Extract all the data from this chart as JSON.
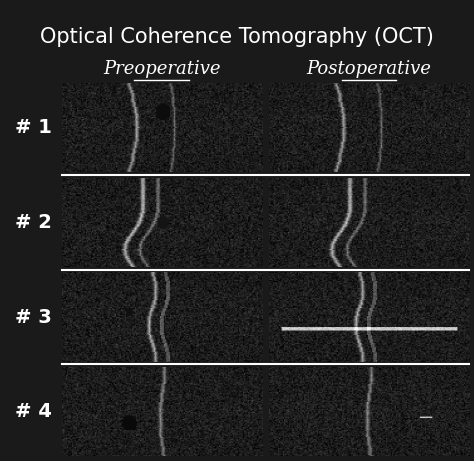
{
  "title": "Optical Coherence Tomography (OCT)",
  "title_fontsize": 15,
  "title_color": "#ffffff",
  "background_color": "#1a1a1a",
  "col_labels": [
    "Preoperative",
    "Postoperative"
  ],
  "col_label_fontsize": 13,
  "col_label_color": "#ffffff",
  "row_labels": [
    "# 1",
    "# 2",
    "# 3",
    "# 4"
  ],
  "row_label_fontsize": 14,
  "row_label_color": "#ffffff",
  "n_rows": 4,
  "n_cols": 2,
  "separator_color": "#ffffff",
  "separator_linewidth": 1.5,
  "figsize": [
    4.74,
    4.61
  ],
  "dpi": 100
}
